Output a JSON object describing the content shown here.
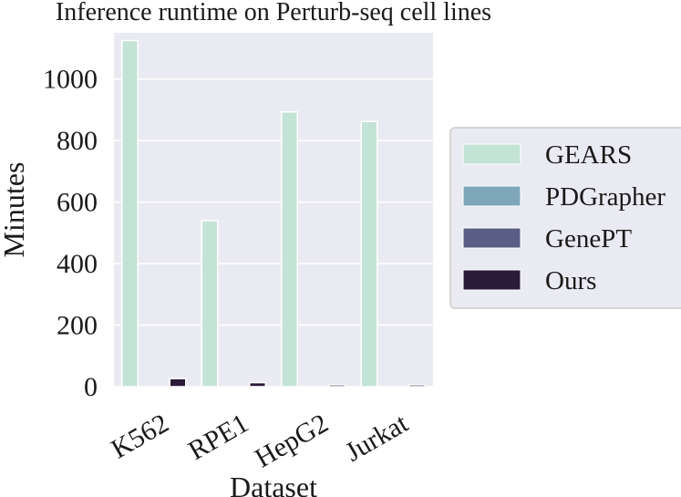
{
  "chart_data": {
    "type": "bar",
    "title": "Inference runtime on Perturb-seq cell lines",
    "xlabel": "Dataset",
    "ylabel": "Minutes",
    "categories": [
      "K562",
      "RPE1",
      "HepG2",
      "Jurkat"
    ],
    "ylim": [
      0,
      1150
    ],
    "yticks": [
      0,
      200,
      400,
      600,
      800,
      1000
    ],
    "grid": true,
    "legend_position": "right",
    "series": [
      {
        "name": "GEARS",
        "color": "#c4e3d7",
        "values": [
          1125,
          540,
          893,
          862
        ]
      },
      {
        "name": "PDGrapher",
        "color": "#7ea8b9",
        "values": [
          0,
          0,
          0,
          0
        ]
      },
      {
        "name": "GenePT",
        "color": "#5a5e86",
        "values": [
          0,
          0,
          0,
          0
        ]
      },
      {
        "name": "Ours",
        "color": "#2b1a38",
        "values": [
          26,
          13,
          6,
          6
        ]
      }
    ]
  }
}
